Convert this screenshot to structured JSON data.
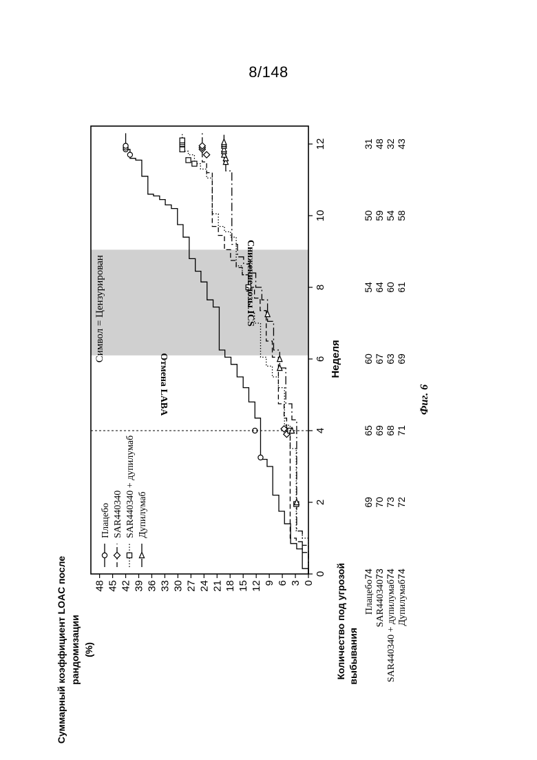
{
  "page_number": "8/148",
  "figure_caption": "Фиг. 6",
  "colors": {
    "ink": "#000000",
    "shade": "#d0d0d0",
    "background": "#ffffff"
  },
  "chart_data": {
    "type": "line",
    "subtype": "kaplan-meier step",
    "title": "",
    "xlabel": "Неделя",
    "ylabel": "Суммарный коэффициент LOAC после рандомизации (%)",
    "ylabel_lines": [
      "Суммарный коэффициент LOAC после",
      "рандомизации",
      "(%)"
    ],
    "xlim": [
      0,
      12.5
    ],
    "ylim": [
      0,
      50
    ],
    "x_ticks": [
      0,
      2,
      4,
      6,
      8,
      10,
      12
    ],
    "y_ticks": [
      0,
      3,
      6,
      9,
      12,
      15,
      18,
      21,
      24,
      27,
      30,
      33,
      36,
      39,
      42,
      45,
      48
    ],
    "grid": false,
    "legend_position": "top-left",
    "censor_note": "Символ = Цензурирован",
    "annotations": [
      {
        "text": "Отмена LABA",
        "x": 4,
        "kind": "vertical-dashed-line"
      },
      {
        "text": "Снижение дозы ICS",
        "x_start": 6.1,
        "x_end": 9.05,
        "kind": "shaded-region"
      }
    ],
    "series": [
      {
        "name": "Плацебо",
        "line": "solid",
        "marker": "circle",
        "steps": [
          [
            0,
            0
          ],
          [
            0.15,
            1.4
          ],
          [
            0.7,
            2.7
          ],
          [
            0.85,
            4.1
          ],
          [
            1.4,
            5.5
          ],
          [
            1.75,
            6.8
          ],
          [
            2.2,
            8.2
          ],
          [
            3.0,
            9.5
          ],
          [
            3.2,
            11.0
          ],
          [
            4.35,
            12.3
          ],
          [
            4.8,
            13.7
          ],
          [
            5.2,
            15.0
          ],
          [
            5.5,
            16.4
          ],
          [
            5.85,
            17.8
          ],
          [
            6.05,
            19.2
          ],
          [
            6.25,
            20.5
          ],
          [
            7.45,
            21.9
          ],
          [
            7.65,
            23.3
          ],
          [
            8.15,
            24.7
          ],
          [
            8.45,
            26.0
          ],
          [
            8.8,
            27.4
          ],
          [
            9.4,
            28.8
          ],
          [
            9.75,
            30.1
          ],
          [
            10.2,
            31.5
          ],
          [
            10.3,
            32.9
          ],
          [
            10.45,
            34.2
          ],
          [
            10.55,
            35.6
          ],
          [
            10.6,
            36.9
          ],
          [
            11.1,
            38.3
          ],
          [
            11.55,
            39.7
          ],
          [
            11.6,
            41.0
          ],
          [
            11.85,
            42.0
          ],
          [
            12.3,
            42.0
          ]
        ],
        "censor_x": [
          3.25,
          4.0,
          11.7,
          11.85,
          11.9,
          11.95
        ],
        "censor_y": [
          11.0,
          12.3,
          41.0,
          42.0,
          42.0,
          42.0
        ]
      },
      {
        "name": "SAR440340",
        "line": "dashed",
        "marker": "diamond",
        "steps": [
          [
            0,
            0
          ],
          [
            0.6,
            1.4
          ],
          [
            0.9,
            2.8
          ],
          [
            1.0,
            4.2
          ],
          [
            3.85,
            5.0
          ],
          [
            4.35,
            5.6
          ],
          [
            4.75,
            6.9
          ],
          [
            6.05,
            8.3
          ],
          [
            6.5,
            9.7
          ],
          [
            7.35,
            11.1
          ],
          [
            7.7,
            12.4
          ],
          [
            8.0,
            13.8
          ],
          [
            8.35,
            15.2
          ],
          [
            8.55,
            16.6
          ],
          [
            8.75,
            17.9
          ],
          [
            9.05,
            19.3
          ],
          [
            9.45,
            20.7
          ],
          [
            9.7,
            22.1
          ],
          [
            11.2,
            23.4
          ],
          [
            11.5,
            24.4
          ],
          [
            12.3,
            24.4
          ]
        ],
        "censor_x": [
          3.9,
          4.05,
          11.7,
          11.85,
          11.9,
          11.95
        ],
        "censor_y": [
          5.0,
          5.6,
          23.4,
          24.4,
          24.4,
          24.4
        ]
      },
      {
        "name": "SAR440340 + дупилумаб",
        "line": "dotted",
        "marker": "square",
        "steps": [
          [
            0,
            0
          ],
          [
            1.0,
            1.4
          ],
          [
            1.2,
            2.8
          ],
          [
            3.5,
            4.2
          ],
          [
            4.15,
            5.5
          ],
          [
            5.2,
            6.9
          ],
          [
            5.5,
            8.3
          ],
          [
            5.8,
            9.7
          ],
          [
            6.05,
            11.0
          ],
          [
            7.0,
            12.4
          ],
          [
            7.3,
            13.8
          ],
          [
            8.35,
            15.2
          ],
          [
            8.6,
            16.6
          ],
          [
            9.4,
            17.9
          ],
          [
            9.55,
            19.3
          ],
          [
            9.7,
            20.7
          ],
          [
            10.05,
            22.1
          ],
          [
            11.05,
            23.4
          ],
          [
            11.3,
            24.8
          ],
          [
            11.45,
            26.2
          ],
          [
            11.7,
            27.6
          ],
          [
            11.8,
            29.0
          ],
          [
            12.3,
            29.0
          ]
        ],
        "censor_x": [
          1.95,
          4.0,
          8.0,
          11.45,
          11.55,
          11.85,
          12.0,
          12.05,
          12.1
        ],
        "censor_y": [
          2.8,
          4.2,
          13.8,
          26.2,
          27.6,
          29.0,
          29.0,
          29.0,
          29.0
        ]
      },
      {
        "name": "Дупилумаб",
        "line": "dash-dot",
        "marker": "triangle",
        "steps": [
          [
            0,
            0
          ],
          [
            0.8,
            1.4
          ],
          [
            1.2,
            2.7
          ],
          [
            4.3,
            3.8
          ],
          [
            4.75,
            5.2
          ],
          [
            5.75,
            6.6
          ],
          [
            6.25,
            8.0
          ],
          [
            7.05,
            9.4
          ],
          [
            7.65,
            10.7
          ],
          [
            8.0,
            12.1
          ],
          [
            8.4,
            13.5
          ],
          [
            8.65,
            14.9
          ],
          [
            8.85,
            16.3
          ],
          [
            9.2,
            17.6
          ],
          [
            11.25,
            19.0
          ],
          [
            11.5,
            19.4
          ],
          [
            12.3,
            19.4
          ]
        ],
        "censor_x": [
          2.0,
          4.0,
          5.75,
          6.0,
          7.25,
          11.5,
          11.6,
          11.7,
          11.8,
          11.85,
          11.95,
          12.0,
          12.05
        ],
        "censor_y": [
          2.7,
          3.8,
          6.6,
          6.6,
          9.4,
          19.0,
          19.0,
          19.4,
          19.4,
          19.4,
          19.4,
          19.4,
          19.4
        ]
      }
    ],
    "risk_table": {
      "header_lines": [
        "Количество под угрозой",
        "выбывания"
      ],
      "x": [
        0,
        2,
        4,
        6,
        8,
        10,
        12
      ],
      "rows": [
        {
          "name": "Плацебо",
          "values": [
            "74",
            "69",
            "65",
            "60",
            "54",
            "50",
            "31"
          ]
        },
        {
          "name": "SAR440340",
          "values": [
            "73",
            "70",
            "69",
            "67",
            "64",
            "59",
            "48"
          ]
        },
        {
          "name": "SAR440340 + дупилумаб",
          "values": [
            "74",
            "73",
            "68",
            "63",
            "60",
            "54",
            "32"
          ]
        },
        {
          "name": "Дупилумаб",
          "values": [
            "74",
            "72",
            "71",
            "69",
            "61",
            "58",
            "43"
          ]
        }
      ]
    }
  }
}
